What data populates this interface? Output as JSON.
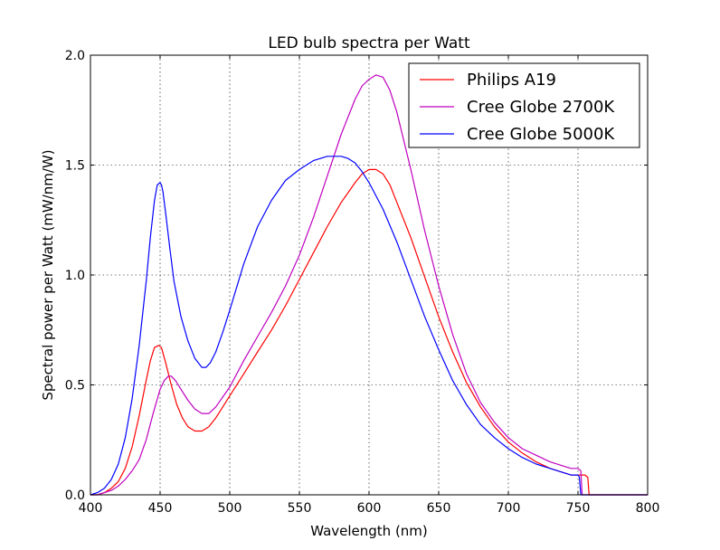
{
  "chart_data": {
    "type": "line",
    "title": "LED bulb spectra per Watt",
    "xlabel": "Wavelength (nm)",
    "ylabel": "Spectral power per Watt (mW/nm/W)",
    "xlim": [
      400,
      800
    ],
    "ylim": [
      0,
      2.0
    ],
    "xticks": [
      400,
      450,
      500,
      550,
      600,
      650,
      700,
      750,
      800
    ],
    "yticks": [
      0,
      0.5,
      1.0,
      1.5,
      2.0
    ],
    "xtick_labels": [
      "400",
      "450",
      "500",
      "550",
      "600",
      "650",
      "700",
      "750",
      "800"
    ],
    "ytick_labels": [
      "0.0",
      "0.5",
      "1.0",
      "1.5",
      "2.0"
    ],
    "grid": true,
    "legend_position": "top-right",
    "series": [
      {
        "name": "Philips A19",
        "color": "#ff0000",
        "x": [
          400,
          405,
          410,
          415,
          420,
          425,
          430,
          435,
          440,
          443,
          446,
          449,
          451,
          454,
          458,
          462,
          466,
          470,
          475,
          480,
          485,
          490,
          495,
          500,
          510,
          520,
          530,
          540,
          550,
          560,
          570,
          580,
          590,
          595,
          600,
          605,
          610,
          615,
          620,
          630,
          640,
          650,
          660,
          670,
          680,
          690,
          700,
          710,
          720,
          730,
          740,
          745,
          750,
          755,
          757,
          758,
          760,
          780,
          800
        ],
        "y": [
          0.0,
          0.0,
          0.01,
          0.03,
          0.06,
          0.12,
          0.22,
          0.36,
          0.52,
          0.61,
          0.67,
          0.68,
          0.67,
          0.6,
          0.5,
          0.41,
          0.35,
          0.31,
          0.29,
          0.29,
          0.31,
          0.35,
          0.4,
          0.45,
          0.55,
          0.65,
          0.75,
          0.86,
          0.98,
          1.1,
          1.22,
          1.33,
          1.42,
          1.46,
          1.48,
          1.48,
          1.46,
          1.41,
          1.33,
          1.17,
          0.99,
          0.81,
          0.65,
          0.51,
          0.4,
          0.31,
          0.24,
          0.19,
          0.15,
          0.12,
          0.1,
          0.09,
          0.09,
          0.09,
          0.08,
          0.0,
          0.0,
          0.0,
          0.0
        ]
      },
      {
        "name": "Cree Globe 2700K",
        "color": "#bf00bf",
        "x": [
          400,
          405,
          410,
          415,
          420,
          425,
          430,
          435,
          440,
          445,
          450,
          453,
          456,
          458,
          461,
          465,
          470,
          475,
          480,
          485,
          490,
          500,
          510,
          520,
          530,
          540,
          550,
          560,
          570,
          580,
          590,
          595,
          600,
          605,
          610,
          615,
          620,
          630,
          640,
          650,
          660,
          670,
          680,
          690,
          700,
          710,
          720,
          730,
          740,
          745,
          750,
          752,
          753,
          755,
          780,
          800
        ],
        "y": [
          0.0,
          0.0,
          0.01,
          0.02,
          0.04,
          0.07,
          0.11,
          0.16,
          0.25,
          0.37,
          0.48,
          0.52,
          0.54,
          0.54,
          0.52,
          0.48,
          0.43,
          0.39,
          0.37,
          0.37,
          0.4,
          0.49,
          0.61,
          0.72,
          0.83,
          0.95,
          1.09,
          1.26,
          1.45,
          1.64,
          1.8,
          1.86,
          1.89,
          1.91,
          1.9,
          1.84,
          1.74,
          1.48,
          1.2,
          0.95,
          0.73,
          0.55,
          0.42,
          0.33,
          0.26,
          0.21,
          0.18,
          0.15,
          0.13,
          0.12,
          0.12,
          0.11,
          0.0,
          0.0,
          0.0,
          0.0
        ]
      },
      {
        "name": "Cree Globe 5000K",
        "color": "#0000ff",
        "x": [
          400,
          405,
          410,
          415,
          420,
          425,
          430,
          435,
          440,
          443,
          446,
          448,
          450,
          451,
          452,
          454,
          457,
          460,
          465,
          470,
          475,
          480,
          483,
          486,
          490,
          495,
          500,
          510,
          520,
          530,
          540,
          550,
          560,
          570,
          580,
          585,
          590,
          595,
          600,
          610,
          620,
          630,
          640,
          650,
          660,
          670,
          680,
          690,
          700,
          710,
          720,
          730,
          740,
          745,
          750,
          751,
          752,
          780,
          800
        ],
        "y": [
          0.0,
          0.01,
          0.03,
          0.07,
          0.14,
          0.26,
          0.44,
          0.68,
          0.97,
          1.17,
          1.34,
          1.41,
          1.42,
          1.41,
          1.38,
          1.28,
          1.12,
          0.97,
          0.81,
          0.7,
          0.62,
          0.58,
          0.58,
          0.6,
          0.65,
          0.74,
          0.84,
          1.05,
          1.22,
          1.34,
          1.43,
          1.48,
          1.52,
          1.54,
          1.54,
          1.53,
          1.51,
          1.47,
          1.42,
          1.3,
          1.15,
          0.98,
          0.81,
          0.66,
          0.52,
          0.41,
          0.32,
          0.26,
          0.21,
          0.17,
          0.14,
          0.12,
          0.1,
          0.09,
          0.09,
          0.08,
          0.0,
          0.0,
          0.0
        ]
      }
    ]
  }
}
